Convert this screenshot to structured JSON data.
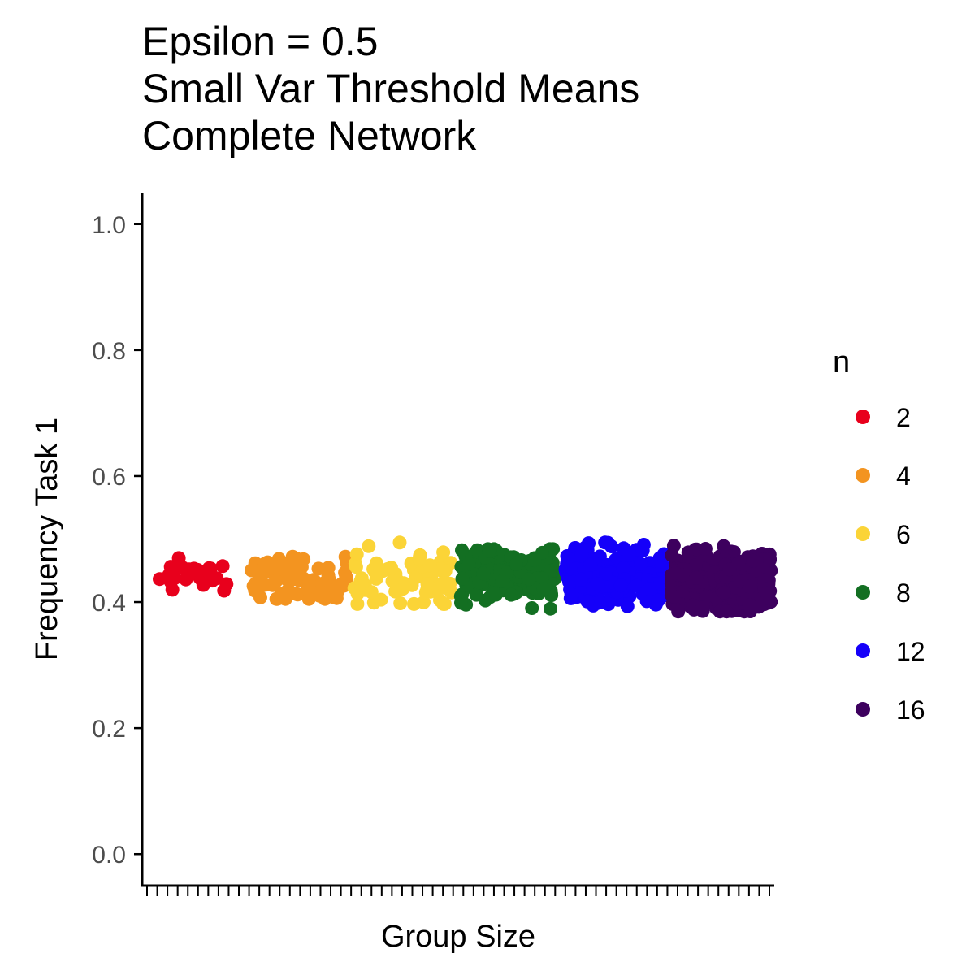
{
  "chart_data": {
    "type": "scatter",
    "title_lines": [
      "Epsilon = 0.5",
      "Small Var Threshold Means",
      "Complete Network"
    ],
    "xlabel": "Group Size",
    "ylabel": "Frequency Task 1",
    "ylim": [
      -0.05,
      1.05
    ],
    "yticks": [
      "0.0",
      "0.2",
      "0.4",
      "0.6",
      "0.8",
      "1.0"
    ],
    "x_tick_count": 62,
    "grid": false,
    "legend": {
      "title": "n",
      "position": "right"
    },
    "series": [
      {
        "name": "2",
        "color": "#E8001C",
        "group_index": 0,
        "n_points": 28,
        "mean": 0.44,
        "spread": 0.045,
        "min": 0.418,
        "max": 0.478
      },
      {
        "name": "4",
        "color": "#F39420",
        "group_index": 1,
        "n_points": 80,
        "mean": 0.435,
        "spread": 0.065,
        "min": 0.405,
        "max": 0.472
      },
      {
        "name": "6",
        "color": "#FBD437",
        "group_index": 2,
        "n_points": 70,
        "mean": 0.44,
        "spread": 0.08,
        "min": 0.397,
        "max": 0.498
      },
      {
        "name": "8",
        "color": "#136F22",
        "group_index": 3,
        "n_points": 200,
        "mean": 0.445,
        "spread": 0.075,
        "min": 0.382,
        "max": 0.484
      },
      {
        "name": "12",
        "color": "#1500F9",
        "group_index": 4,
        "n_points": 260,
        "mean": 0.44,
        "spread": 0.075,
        "min": 0.393,
        "max": 0.498
      },
      {
        "name": "16",
        "color": "#3D005E",
        "group_index": 5,
        "n_points": 330,
        "mean": 0.432,
        "spread": 0.08,
        "min": 0.385,
        "max": 0.507
      }
    ]
  }
}
